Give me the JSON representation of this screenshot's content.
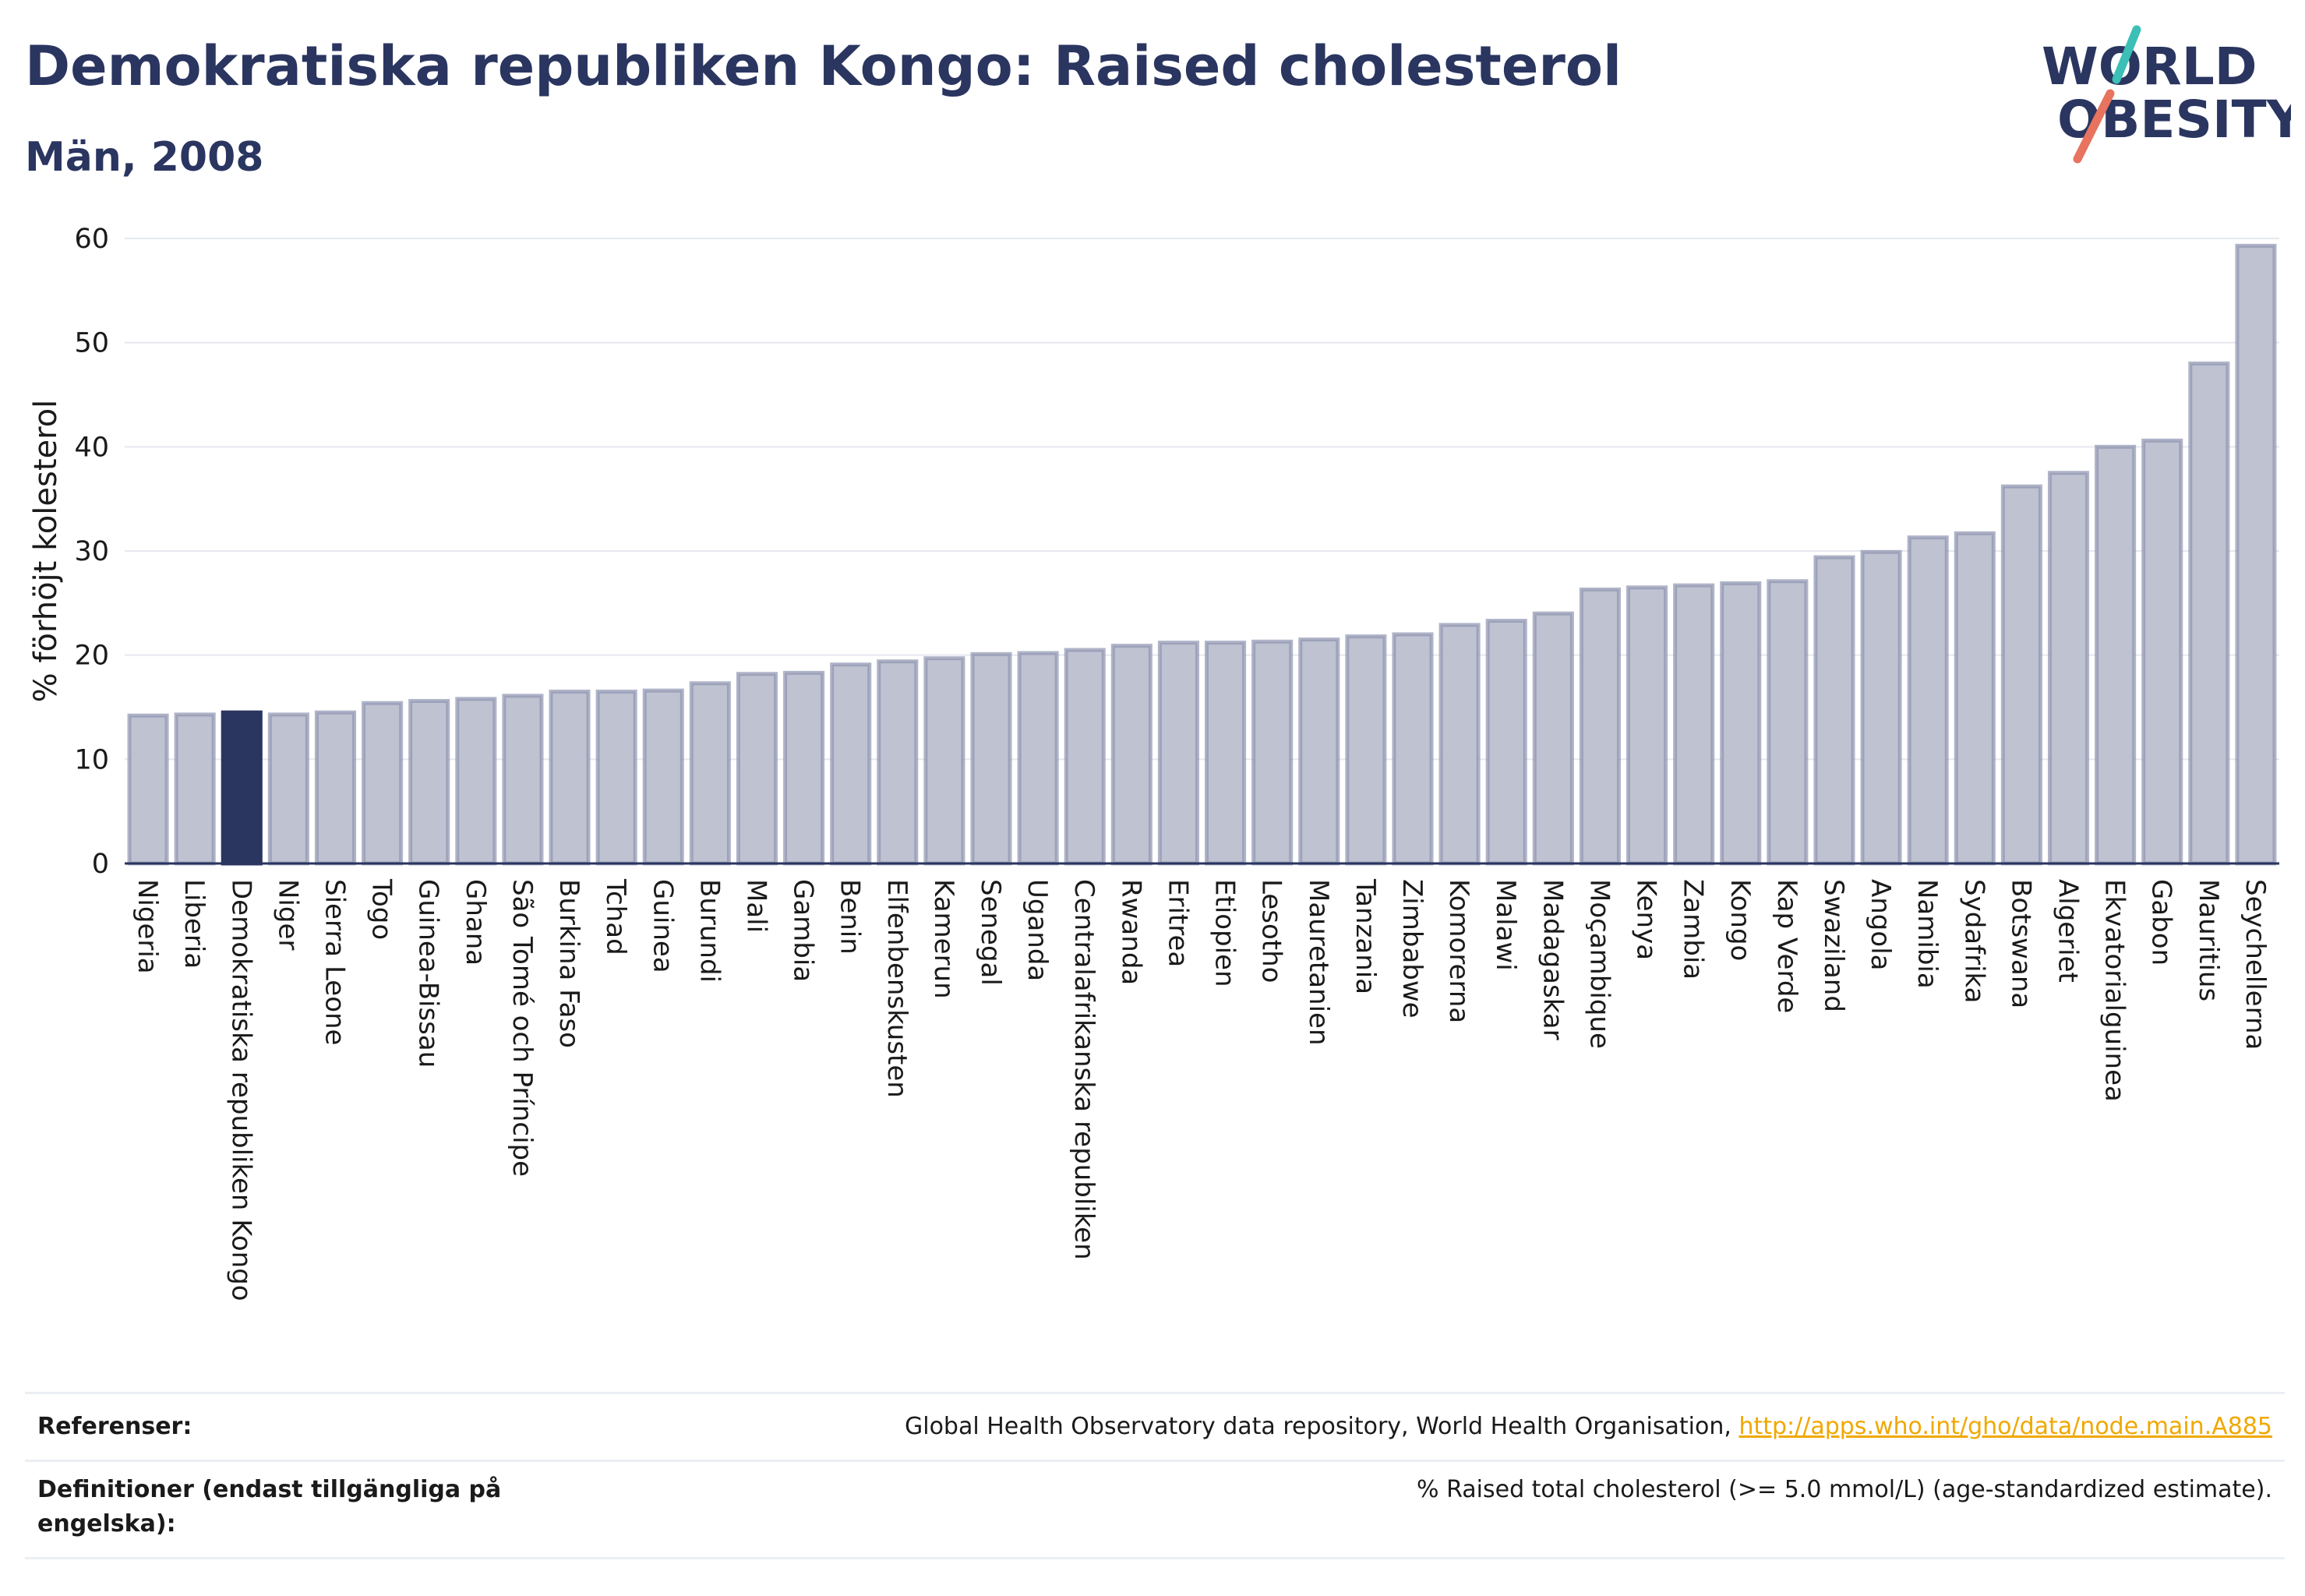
{
  "header": {
    "title": "Demokratiska republiken Kongo: Raised cholesterol",
    "subtitle": "Män, 2008"
  },
  "logo": {
    "line1": "WORLD",
    "line2": "OBESITY",
    "icon": "world-obesity-logo"
  },
  "colors": {
    "bar": "#bec2d1",
    "bar_stroke": "#8e94b0",
    "highlight": "#2a3560",
    "grid": "#e6e8ef",
    "accent_teal": "#3bbfb6",
    "accent_coral": "#e8735f",
    "link": "#f0a800"
  },
  "chart_data": {
    "type": "bar",
    "title": "Demokratiska republiken Kongo: Raised cholesterol",
    "subtitle": "Män, 2008",
    "ylabel": "% förhöjt kolesterol",
    "xlabel": "",
    "ylim": [
      0,
      60
    ],
    "yticks": [
      0,
      10,
      20,
      30,
      40,
      50,
      60
    ],
    "grid": true,
    "highlight": "Demokratiska republiken Kongo",
    "categories": [
      "Nigeria",
      "Liberia",
      "Demokratiska republiken Kongo",
      "Niger",
      "Sierra Leone",
      "Togo",
      "Guinea-Bissau",
      "Ghana",
      "São Tomé och Príncipe",
      "Burkina Faso",
      "Tchad",
      "Guinea",
      "Burundi",
      "Mali",
      "Gambia",
      "Benin",
      "Elfenbenskusten",
      "Kamerun",
      "Senegal",
      "Uganda",
      "Centralafrikanska republiken",
      "Rwanda",
      "Eritrea",
      "Etiopien",
      "Lesotho",
      "Mauretanien",
      "Tanzania",
      "Zimbabwe",
      "Komorerna",
      "Malawi",
      "Madagaskar",
      "Moçambique",
      "Kenya",
      "Zambia",
      "Kongo",
      "Kap Verde",
      "Swaziland",
      "Angola",
      "Namibia",
      "Sydafrika",
      "Botswana",
      "Algeriet",
      "Ekvatorialguinea",
      "Gabon",
      "Mauritius",
      "Seychellerna"
    ],
    "values": [
      14.2,
      14.3,
      14.5,
      14.3,
      14.5,
      15.4,
      15.6,
      15.8,
      16.1,
      16.5,
      16.5,
      16.6,
      17.3,
      18.2,
      18.3,
      19.1,
      19.4,
      19.7,
      20.1,
      20.2,
      20.5,
      20.9,
      21.2,
      21.2,
      21.3,
      21.5,
      21.8,
      22.0,
      22.9,
      23.3,
      24.0,
      26.3,
      26.5,
      26.7,
      26.9,
      27.1,
      29.4,
      29.9,
      31.3,
      31.7,
      36.2,
      37.5,
      40.0,
      40.6,
      48.0,
      59.3
    ]
  },
  "footer": {
    "references_label": "Referenser:",
    "references_text": "Global Health Observatory data repository, World Health Organisation,",
    "references_link": "http://apps.who.int/gho/data/node.main.A885",
    "definitions_label": "Definitioner (endast tillgängliga på engelska):",
    "definitions_text": "% Raised total cholesterol (>= 5.0 mmol/L) (age-standardized estimate)."
  }
}
